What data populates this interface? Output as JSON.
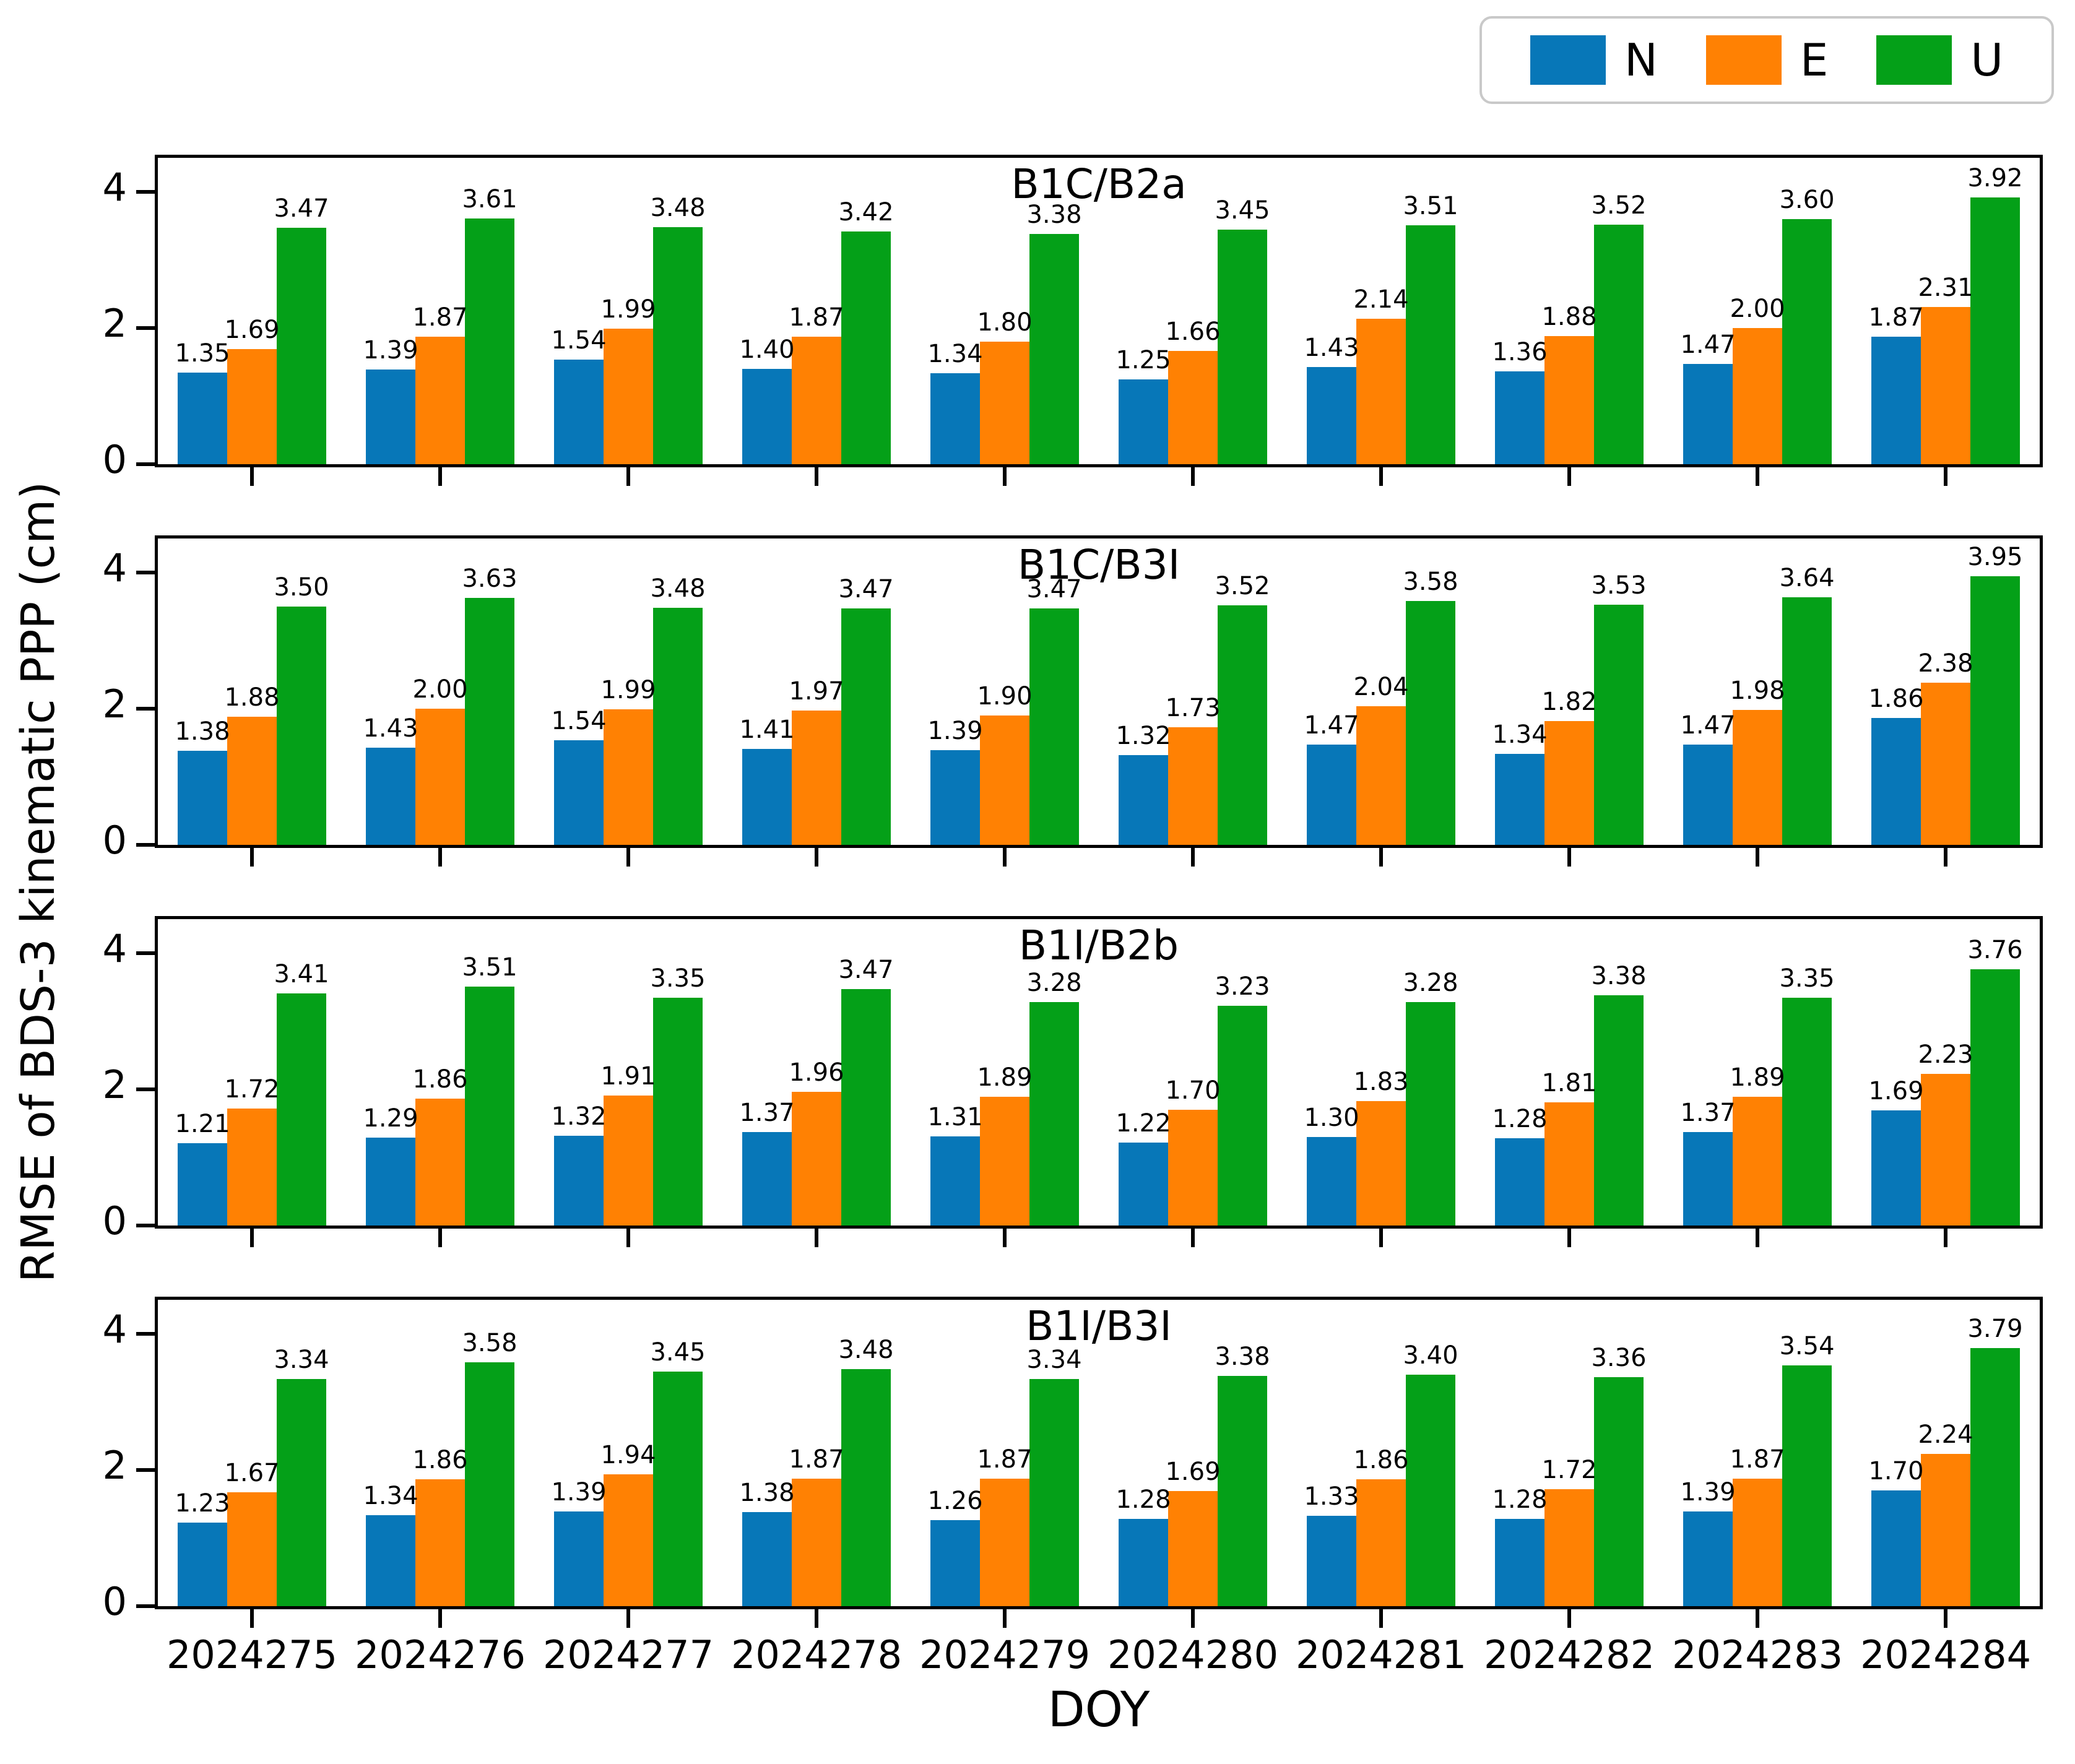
{
  "figure": {
    "ylabel": "RMSE of BDS-3 kinematic PPP (cm)",
    "xlabel": "DOY",
    "legend": [
      {
        "label": "N",
        "color": "#0777b8"
      },
      {
        "label": "E",
        "color": "#ff8103"
      },
      {
        "label": "U",
        "color": "#04a018"
      }
    ]
  },
  "chart_data": [
    {
      "type": "bar",
      "title": "B1C/B2a",
      "categories": [
        "2024275",
        "2024276",
        "2024277",
        "2024278",
        "2024279",
        "2024280",
        "2024281",
        "2024282",
        "2024283",
        "2024284"
      ],
      "series": [
        {
          "name": "N",
          "color": "#0777b8",
          "values": [
            1.35,
            1.39,
            1.54,
            1.4,
            1.34,
            1.25,
            1.43,
            1.36,
            1.47,
            1.87
          ]
        },
        {
          "name": "E",
          "color": "#ff8103",
          "values": [
            1.69,
            1.87,
            1.99,
            1.87,
            1.8,
            1.66,
            2.14,
            1.88,
            2.0,
            2.31
          ]
        },
        {
          "name": "U",
          "color": "#04a018",
          "values": [
            3.47,
            3.61,
            3.48,
            3.42,
            3.38,
            3.45,
            3.51,
            3.52,
            3.6,
            3.92
          ]
        }
      ],
      "ylim": [
        0,
        4.5
      ],
      "yticks": [
        0,
        2,
        4
      ],
      "grid": false,
      "legend_position": "top-right-outside"
    },
    {
      "type": "bar",
      "title": "B1C/B3I",
      "categories": [
        "2024275",
        "2024276",
        "2024277",
        "2024278",
        "2024279",
        "2024280",
        "2024281",
        "2024282",
        "2024283",
        "2024284"
      ],
      "series": [
        {
          "name": "N",
          "color": "#0777b8",
          "values": [
            1.38,
            1.43,
            1.54,
            1.41,
            1.39,
            1.32,
            1.47,
            1.34,
            1.47,
            1.86
          ]
        },
        {
          "name": "E",
          "color": "#ff8103",
          "values": [
            1.88,
            2.0,
            1.99,
            1.97,
            1.9,
            1.73,
            2.04,
            1.82,
            1.98,
            2.38
          ]
        },
        {
          "name": "U",
          "color": "#04a018",
          "values": [
            3.5,
            3.63,
            3.48,
            3.47,
            3.47,
            3.52,
            3.58,
            3.53,
            3.64,
            3.95
          ]
        }
      ],
      "ylim": [
        0,
        4.5
      ],
      "yticks": [
        0,
        2,
        4
      ],
      "grid": false
    },
    {
      "type": "bar",
      "title": "B1I/B2b",
      "categories": [
        "2024275",
        "2024276",
        "2024277",
        "2024278",
        "2024279",
        "2024280",
        "2024281",
        "2024282",
        "2024283",
        "2024284"
      ],
      "series": [
        {
          "name": "N",
          "color": "#0777b8",
          "values": [
            1.21,
            1.29,
            1.32,
            1.37,
            1.31,
            1.22,
            1.3,
            1.28,
            1.37,
            1.69
          ]
        },
        {
          "name": "E",
          "color": "#ff8103",
          "values": [
            1.72,
            1.86,
            1.91,
            1.96,
            1.89,
            1.7,
            1.83,
            1.81,
            1.89,
            2.23
          ]
        },
        {
          "name": "U",
          "color": "#04a018",
          "values": [
            3.41,
            3.51,
            3.35,
            3.47,
            3.28,
            3.23,
            3.28,
            3.38,
            3.35,
            3.76
          ]
        }
      ],
      "ylim": [
        0,
        4.5
      ],
      "yticks": [
        0,
        2,
        4
      ],
      "grid": false
    },
    {
      "type": "bar",
      "title": "B1I/B3I",
      "categories": [
        "2024275",
        "2024276",
        "2024277",
        "2024278",
        "2024279",
        "2024280",
        "2024281",
        "2024282",
        "2024283",
        "2024284"
      ],
      "series": [
        {
          "name": "N",
          "color": "#0777b8",
          "values": [
            1.23,
            1.34,
            1.39,
            1.38,
            1.26,
            1.28,
            1.33,
            1.28,
            1.39,
            1.7
          ]
        },
        {
          "name": "E",
          "color": "#ff8103",
          "values": [
            1.67,
            1.86,
            1.94,
            1.87,
            1.87,
            1.69,
            1.86,
            1.72,
            1.87,
            2.24
          ]
        },
        {
          "name": "U",
          "color": "#04a018",
          "values": [
            3.34,
            3.58,
            3.45,
            3.48,
            3.34,
            3.38,
            3.4,
            3.36,
            3.54,
            3.79
          ]
        }
      ],
      "ylim": [
        0,
        4.5
      ],
      "yticks": [
        0,
        2,
        4
      ],
      "grid": false
    }
  ]
}
